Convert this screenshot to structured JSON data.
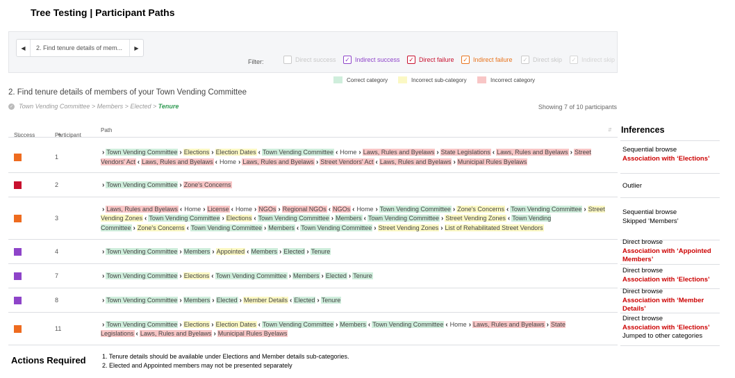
{
  "title": "Tree Testing | Participant Paths",
  "pager": {
    "prev_icon": "chevron-left-icon",
    "next_icon": "chevron-right-icon",
    "text": "2. Find tenure details of mem..."
  },
  "filter": {
    "label": "Filter:",
    "items": [
      {
        "label": "Direct success",
        "checked": false,
        "color": "#c9c9c9"
      },
      {
        "label": "Indirect success",
        "checked": true,
        "color": "#8e44c9"
      },
      {
        "label": "Direct failure",
        "checked": true,
        "color": "#c8102e"
      },
      {
        "label": "Indirect failure",
        "checked": true,
        "color": "#e8731c"
      },
      {
        "label": "Direct skip",
        "checked": true,
        "color": "#c9c9c9"
      },
      {
        "label": "Indirect skip",
        "checked": true,
        "color": "#d5d5d5"
      }
    ]
  },
  "legend": [
    {
      "label": "Correct category",
      "color": "#cfeedc"
    },
    {
      "label": "Incorrect sub-category",
      "color": "#fbf8c4"
    },
    {
      "label": "Incorrect category",
      "color": "#f8c6c6"
    }
  ],
  "task": {
    "title": "2. Find tenure details of members of your Town Vending Committee",
    "breadcrumb": [
      "Town Vending Committee",
      "Members",
      "Elected",
      "Tenure"
    ],
    "showing": "Showing 7 of 10 participants"
  },
  "table": {
    "headers": {
      "success": "Success",
      "participant": "Participant",
      "path": "Path"
    },
    "rows": [
      {
        "participant": "1",
        "status_color": "#ee6b1f",
        "path": [
          [
            "c",
            "Town Vending Committee"
          ],
          [
            ">",
            "s",
            "Elections"
          ],
          [
            ">",
            "s",
            "Election Dates"
          ],
          [
            "<",
            "c",
            "Town Vending Committee"
          ],
          [
            "<",
            "",
            "Home"
          ],
          [
            ">",
            "i",
            "Laws, Rules and Byelaws"
          ],
          [
            ">",
            "i",
            "State Legislations"
          ],
          [
            "<",
            "i",
            "Laws, Rules and Byelaws"
          ],
          [
            ">",
            "i",
            "Street Vendors' Act"
          ],
          [
            "<",
            "i",
            "Laws, Rules and Byelaws"
          ],
          [
            "<",
            "",
            "Home"
          ],
          [
            ">",
            "i",
            "Laws, Rules and Byelaws"
          ],
          [
            ">",
            "i",
            "Street Vendors' Act"
          ],
          [
            "<",
            "i",
            "Laws, Rules and Byelaws"
          ],
          [
            ">",
            "i",
            "Municipal Rules Byelaws"
          ]
        ]
      },
      {
        "participant": "2",
        "status_color": "#c8102e",
        "path": [
          [
            "c",
            "Town Vending Committee"
          ],
          [
            ">",
            "i",
            "Zone's Concerns"
          ]
        ]
      },
      {
        "participant": "3",
        "status_color": "#ee6b1f",
        "path": [
          [
            "i",
            "Laws, Rules and Byelaws"
          ],
          [
            "<",
            "",
            "Home"
          ],
          [
            ">",
            "i",
            "License"
          ],
          [
            "<",
            "",
            "Home"
          ],
          [
            ">",
            "i",
            "NGOs"
          ],
          [
            ">",
            "i",
            "Regional NGOs"
          ],
          [
            "<",
            "i",
            "NGOs"
          ],
          [
            "<",
            "",
            "Home"
          ],
          [
            ">",
            "c",
            "Town Vending Committee"
          ],
          [
            ">",
            "s",
            "Zone's Concerns"
          ],
          [
            "<",
            "c",
            "Town Vending Committee"
          ],
          [
            ">",
            "s",
            "Street Vending Zones"
          ],
          [
            "<",
            "c",
            "Town Vending Committee"
          ],
          [
            ">",
            "s",
            "Elections"
          ],
          [
            "<",
            "c",
            "Town Vending Committee"
          ],
          [
            ">",
            "c",
            "Members"
          ],
          [
            "<",
            "c",
            "Town Vending Committee"
          ],
          [
            ">",
            "s",
            "Street Vending Zones"
          ],
          [
            "<",
            "c",
            "Town Vending Committee"
          ],
          [
            ">",
            "s",
            "Zone's Concerns"
          ],
          [
            "<",
            "c",
            "Town Vending Committee"
          ],
          [
            ">",
            "c",
            "Members"
          ],
          [
            "<",
            "c",
            "Town Vending Committee"
          ],
          [
            ">",
            "s",
            "Street Vending Zones"
          ],
          [
            ">",
            "s",
            "List of Rehabilitated Street Vendors"
          ]
        ]
      },
      {
        "participant": "4",
        "status_color": "#8e44c9",
        "path": [
          [
            "c",
            "Town Vending Committee"
          ],
          [
            ">",
            "c",
            "Members"
          ],
          [
            ">",
            "s",
            "Appointed"
          ],
          [
            "<",
            "c",
            "Members"
          ],
          [
            ">",
            "c",
            "Elected"
          ],
          [
            ">",
            "c",
            "Tenure"
          ]
        ]
      },
      {
        "participant": "7",
        "status_color": "#8e44c9",
        "path": [
          [
            "c",
            "Town Vending Committee"
          ],
          [
            ">",
            "s",
            "Elections"
          ],
          [
            "<",
            "c",
            "Town Vending Committee"
          ],
          [
            ">",
            "c",
            "Members"
          ],
          [
            ">",
            "c",
            "Elected"
          ],
          [
            ">",
            "c",
            "Tenure"
          ]
        ]
      },
      {
        "participant": "8",
        "status_color": "#8e44c9",
        "path": [
          [
            "c",
            "Town Vending Committee"
          ],
          [
            ">",
            "c",
            "Members"
          ],
          [
            ">",
            "c",
            "Elected"
          ],
          [
            ">",
            "s",
            "Member Details"
          ],
          [
            "<",
            "c",
            "Elected"
          ],
          [
            ">",
            "c",
            "Tenure"
          ]
        ]
      },
      {
        "participant": "11",
        "status_color": "#ee6b1f",
        "path": [
          [
            "c",
            "Town Vending Committee"
          ],
          [
            ">",
            "s",
            "Elections"
          ],
          [
            ">",
            "s",
            "Election Dates"
          ],
          [
            "<",
            "c",
            "Town Vending Committee"
          ],
          [
            ">",
            "c",
            "Members"
          ],
          [
            "<",
            "c",
            "Town Vending Committee"
          ],
          [
            "<",
            "",
            "Home"
          ],
          [
            ">",
            "i",
            "Laws, Rules and Byelaws"
          ],
          [
            ">",
            "i",
            "State Legislations"
          ],
          [
            "<",
            "i",
            "Laws, Rules and Byelaws"
          ],
          [
            ">",
            "i",
            "Municipal Rules Byelaws"
          ]
        ]
      }
    ]
  },
  "inferences": {
    "title": "Inferences",
    "items": [
      {
        "lines": [
          [
            "",
            "Sequential browse"
          ],
          [
            "red",
            "Association with ‘Elections’"
          ]
        ]
      },
      {
        "lines": [
          [
            "",
            "Outlier"
          ]
        ]
      },
      {
        "lines": [
          [
            "",
            "Sequential browse"
          ],
          [
            "",
            "Skipped ‘Members’"
          ]
        ]
      },
      {
        "lines": [
          [
            "",
            "Direct browse"
          ],
          [
            "red",
            "Association with ‘Appointed Members’"
          ]
        ]
      },
      {
        "lines": [
          [
            "",
            "Direct browse"
          ],
          [
            "red",
            "Association with ‘Elections’"
          ]
        ]
      },
      {
        "lines": [
          [
            "",
            "Direct browse"
          ],
          [
            "red",
            "Association with ‘Member Details’"
          ]
        ]
      },
      {
        "lines": [
          [
            "",
            "Direct browse"
          ],
          [
            "red",
            "Association with ‘Elections’"
          ],
          [
            "",
            "Jumped to other categories"
          ]
        ]
      }
    ]
  },
  "actions": {
    "title": "Actions Required",
    "items": [
      "1. Tenure details should be available under Elections and Member details sub-categories.",
      "2. Elected and Appointed members may not be presented separately"
    ]
  }
}
